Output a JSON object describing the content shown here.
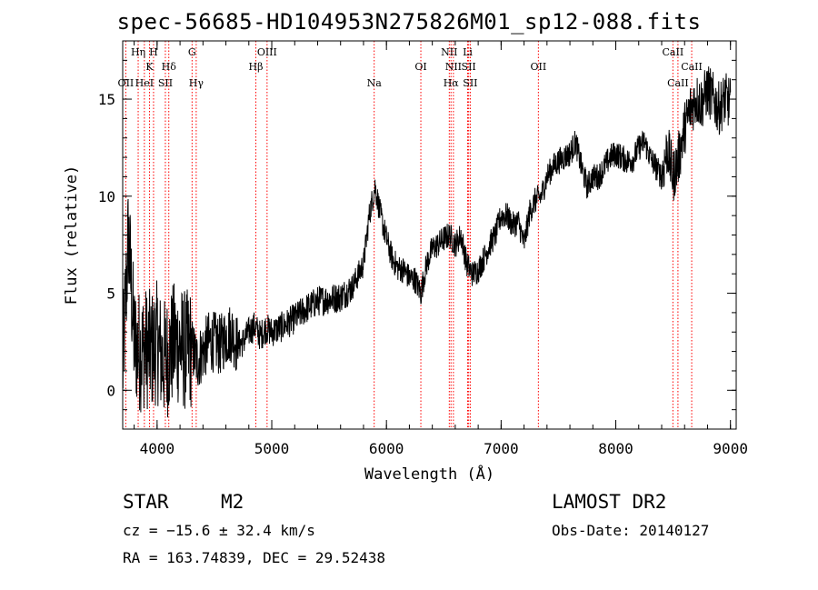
{
  "title": "spec-56685-HD104953N275826M01_sp12-088.fits",
  "footer": {
    "class_label": "STAR",
    "subclass": "M2",
    "survey": "LAMOST DR2",
    "cz_text": "cz = −15.6 ± 32.4 km/s",
    "obs_date": "Obs-Date: 20140127",
    "coords": "RA = 163.74839, DEC =  29.52438"
  },
  "chart_data": {
    "type": "line",
    "title": "spec-56685-HD104953N275826M01_sp12-088.fits",
    "xlabel": "Wavelength (Å)",
    "ylabel": "Flux (relative)",
    "xlim": [
      3700,
      9050
    ],
    "ylim": [
      -2,
      18
    ],
    "xticks": [
      4000,
      5000,
      6000,
      7000,
      8000,
      9000
    ],
    "yticks": [
      0,
      5,
      10,
      15
    ],
    "grid": false,
    "line_color": "#000000",
    "marker_color": "#ff0000",
    "spectrum": {
      "x": [
        3700,
        3750,
        3800,
        3850,
        3900,
        3950,
        4000,
        4050,
        4100,
        4150,
        4200,
        4250,
        4300,
        4350,
        4400,
        4450,
        4500,
        4550,
        4600,
        4650,
        4700,
        4750,
        4800,
        4850,
        4900,
        4950,
        5000,
        5100,
        5200,
        5300,
        5400,
        5500,
        5600,
        5700,
        5800,
        5850,
        5900,
        5950,
        6000,
        6050,
        6100,
        6150,
        6200,
        6250,
        6300,
        6350,
        6400,
        6450,
        6500,
        6550,
        6600,
        6650,
        6700,
        6750,
        6800,
        6850,
        6900,
        6950,
        7000,
        7050,
        7100,
        7150,
        7200,
        7250,
        7300,
        7350,
        7400,
        7450,
        7500,
        7550,
        7600,
        7650,
        7700,
        7750,
        7800,
        7850,
        7900,
        7950,
        8000,
        8050,
        8100,
        8150,
        8200,
        8250,
        8300,
        8350,
        8400,
        8450,
        8500,
        8550,
        8600,
        8650,
        8700,
        8750,
        8800,
        8850,
        8900,
        8950,
        9000
      ],
      "y": [
        1.0,
        8.0,
        2.5,
        2.0,
        2.2,
        2.0,
        2.5,
        1.5,
        1.8,
        2.5,
        2.3,
        2.0,
        2.2,
        1.5,
        2.0,
        2.5,
        2.5,
        2.3,
        2.8,
        3.0,
        2.3,
        2.5,
        3.0,
        3.3,
        2.8,
        3.2,
        3.0,
        3.3,
        3.7,
        4.2,
        4.6,
        4.7,
        4.8,
        5.3,
        6.5,
        9.0,
        10.5,
        9.0,
        7.8,
        6.8,
        6.3,
        6.2,
        5.8,
        5.7,
        5.0,
        6.5,
        7.3,
        7.5,
        7.8,
        8.0,
        7.5,
        8.0,
        6.5,
        6.0,
        6.2,
        6.8,
        7.5,
        8.0,
        9.0,
        9.0,
        8.5,
        8.7,
        7.5,
        9.2,
        9.8,
        10.0,
        11.0,
        11.5,
        11.8,
        12.0,
        12.2,
        12.8,
        11.5,
        10.5,
        11.0,
        11.0,
        11.5,
        12.0,
        12.2,
        12.0,
        11.8,
        11.9,
        12.5,
        12.8,
        12.0,
        11.5,
        11.0,
        12.5,
        11.0,
        12.0,
        13.5,
        14.5,
        15.0,
        14.8,
        15.5,
        15.0,
        14.5,
        15.0,
        14.8
      ]
    },
    "lines": [
      {
        "label": "OII",
        "wl": 3727,
        "row": 3
      },
      {
        "label": "Hη",
        "wl": 3835,
        "row": 1
      },
      {
        "label": "H",
        "wl": 3969,
        "row": 1
      },
      {
        "label": "K",
        "wl": 3934,
        "row": 2
      },
      {
        "label": "HeI",
        "wl": 3889,
        "row": 3
      },
      {
        "label": "SII",
        "wl": 4072,
        "row": 3
      },
      {
        "label": "Hδ",
        "wl": 4102,
        "row": 2
      },
      {
        "label": "G",
        "wl": 4305,
        "row": 1
      },
      {
        "label": "Hγ",
        "wl": 4341,
        "row": 3
      },
      {
        "label": "OIII",
        "wl": 4959,
        "row": 1
      },
      {
        "label": "Hβ",
        "wl": 4861,
        "row": 2
      },
      {
        "label": "Na",
        "wl": 5893,
        "row": 3
      },
      {
        "label": "OI",
        "wl": 6300,
        "row": 2
      },
      {
        "label": "NII",
        "wl": 6548,
        "row": 1
      },
      {
        "label": "Li",
        "wl": 6708,
        "row": 1
      },
      {
        "label": "NII",
        "wl": 6584,
        "row": 2
      },
      {
        "label": "SII",
        "wl": 6717,
        "row": 2
      },
      {
        "label": "Hα",
        "wl": 6563,
        "row": 3
      },
      {
        "label": "SII",
        "wl": 6731,
        "row": 3
      },
      {
        "label": "OII",
        "wl": 7325,
        "row": 2
      },
      {
        "label": "CaII",
        "wl": 8498,
        "row": 1
      },
      {
        "label": "CaII",
        "wl": 8662,
        "row": 2
      },
      {
        "label": "CaII",
        "wl": 8542,
        "row": 3
      }
    ]
  }
}
